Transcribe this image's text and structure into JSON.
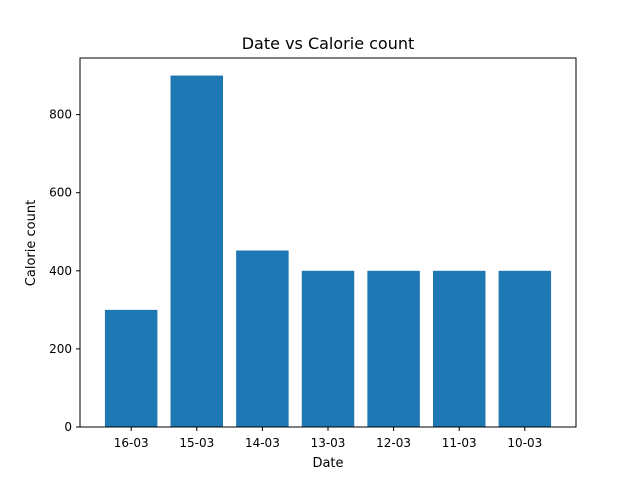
{
  "chart_data": {
    "type": "bar",
    "title": "Date vs Calorie count",
    "xlabel": "Date",
    "ylabel": "Calorie count",
    "categories": [
      "16-03",
      "15-03",
      "14-03",
      "13-03",
      "12-03",
      "11-03",
      "10-03"
    ],
    "values": [
      300,
      900,
      452,
      400,
      400,
      400,
      400
    ],
    "ylim": [
      0,
      945
    ],
    "yticks": [
      0,
      200,
      400,
      600,
      800
    ],
    "grid": false,
    "bar_color": "#1f77b4"
  }
}
